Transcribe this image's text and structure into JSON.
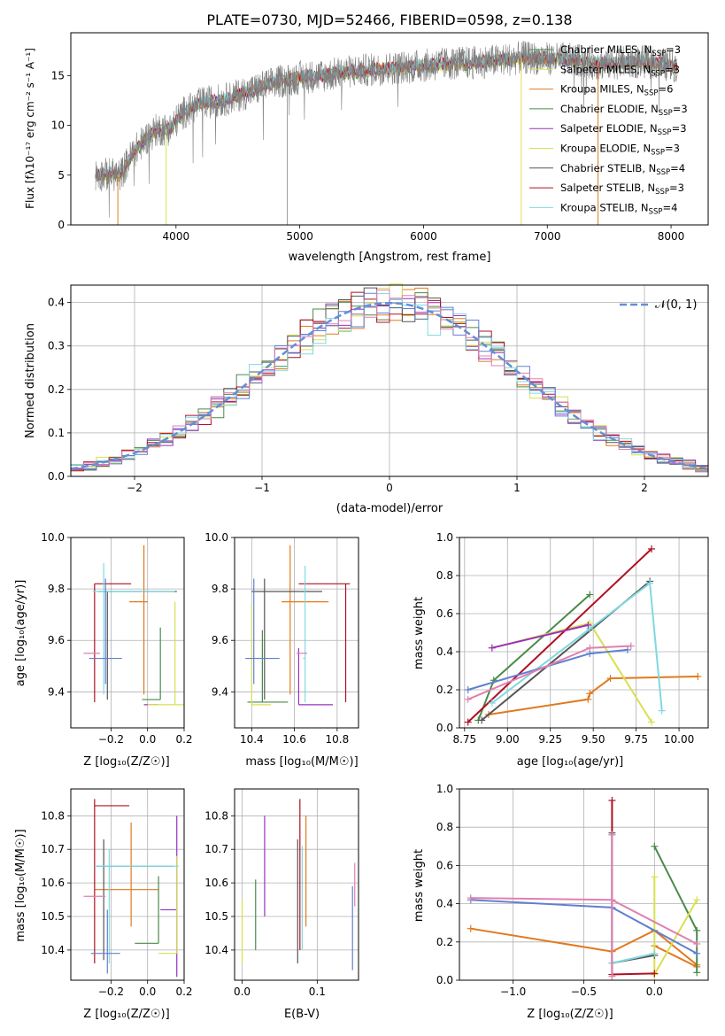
{
  "title": "PLATE=0730, MJD=52466, FIBERID=0598, z=0.138",
  "colors": {
    "series": [
      "#e07a1f",
      "#4a8a4a",
      "#9a2fbf",
      "#d8e050",
      "#555555",
      "#b01020",
      "#80d8e0"
    ],
    "teal": "#80d8e0",
    "mean_blue": "#6080d0",
    "pink": "#e080b0",
    "data_gray": "#808080",
    "gaussian": "#6090d8"
  },
  "chart_data": [
    {
      "id": "spectrum",
      "type": "line",
      "xlabel": "wavelength [Angstrom, rest frame]",
      "ylabel": "Flux [fλ10⁻¹⁷ erg cm⁻² s⁻¹ A⁻¹]",
      "xlim": [
        3150,
        8300
      ],
      "ylim": [
        0,
        19.3
      ],
      "xticks": [
        "4000",
        "5000",
        "6000",
        "7000",
        "8000"
      ],
      "yticks": [
        "0",
        "5",
        "10",
        "15"
      ],
      "legend_position": "upper-right",
      "legend": [
        "Chabrier MILES, N_SSP=3",
        "Salpeter MILES, N_SSP=3",
        "Kroupa MILES, N_SSP=6",
        "Chabrier ELODIE, N_SSP=3",
        "Salpeter ELODIE, N_SSP=3",
        "Kroupa ELODIE, N_SSP=3",
        "Chabrier STELIB, N_SSP=4",
        "Salpeter STELIB, N_SSP=3",
        "Kroupa STELIB, N_SSP=4"
      ],
      "continuum": {
        "wavelength": [
          3350,
          3450,
          3550,
          3650,
          3750,
          3850,
          3950,
          4050,
          4200,
          4400,
          4600,
          4800,
          5000,
          5200,
          5400,
          5600,
          5800,
          6000,
          6200,
          6400,
          6600,
          6800,
          7000,
          7200,
          7400,
          7600,
          7800,
          8000
        ],
        "flux": [
          5.0,
          5.1,
          5.0,
          7.2,
          8.6,
          9.6,
          9.6,
          11.2,
          12.2,
          12.6,
          13.4,
          14.3,
          14.8,
          15.0,
          15.4,
          15.6,
          15.8,
          16.0,
          16.2,
          16.3,
          16.5,
          16.8,
          16.7,
          16.6,
          16.2,
          16.3,
          16.4,
          16.0
        ]
      },
      "model_dropouts_wavelength": [
        3530,
        3920,
        6790,
        7410
      ]
    },
    {
      "id": "residuals",
      "type": "line",
      "xlabel": "(data-model)/error",
      "ylabel": "Normed distribution",
      "xlim": [
        -2.5,
        2.5
      ],
      "ylim": [
        0,
        0.44
      ],
      "xticks": [
        "−2",
        "−1",
        "0",
        "1",
        "2"
      ],
      "yticks": [
        "0.0",
        "0.1",
        "0.2",
        "0.3",
        "0.4"
      ],
      "legend": [
        "𝒩(0, 1)"
      ],
      "legend_position": "upper-right"
    },
    {
      "id": "age-vs-Z",
      "type": "scatter",
      "xlabel": "Z [log₁₀(Z/Z☉)]",
      "ylabel": "age  [log₁₀(age/yr)]",
      "xlim": [
        -0.42,
        0.2
      ],
      "ylim": [
        9.26,
        10.0
      ],
      "xticks": [
        "−0.2",
        "0.0",
        "0.2"
      ],
      "yticks": [
        "9.4",
        "9.6",
        "9.8",
        "10.0"
      ],
      "points": [
        {
          "x": -0.02,
          "y": 9.75,
          "xerr": [
            0.08,
            0.02
          ],
          "yerr": [
            0.36,
            0.22
          ],
          "color": 0
        },
        {
          "x": 0.07,
          "y": 9.37,
          "xerr": [
            0.1,
            0.0
          ],
          "yerr": [
            0.0,
            0.28
          ],
          "color": 1
        },
        {
          "x": 0.06,
          "y": 9.35,
          "xerr": [
            0.08,
            0.0
          ],
          "yerr": [
            0.0,
            0.0
          ],
          "color": 2
        },
        {
          "x": 0.15,
          "y": 9.35,
          "xerr": [
            0.15,
            0.05
          ],
          "yerr": [
            0.0,
            0.4
          ],
          "color": 3
        },
        {
          "x": -0.22,
          "y": 9.79,
          "xerr": [
            0.05,
            0.38
          ],
          "yerr": [
            0.42,
            0.0
          ],
          "color": 4
        },
        {
          "x": -0.29,
          "y": 9.82,
          "xerr": [
            0.0,
            0.2
          ],
          "yerr": [
            0.46,
            0.0
          ],
          "color": 5
        },
        {
          "x": -0.24,
          "y": 9.79,
          "xerr": [
            0.06,
            0.39
          ],
          "yerr": [
            0.4,
            0.11
          ],
          "color": 6
        },
        {
          "x": -0.23,
          "y": 9.53,
          "xerr": [
            0.09,
            0.09
          ],
          "yerr": [
            0.1,
            0.31
          ],
          "color": 7
        },
        {
          "x": -0.33,
          "y": 9.55,
          "xerr": [
            0.02,
            0.07
          ],
          "yerr": [
            0.0,
            0.0
          ],
          "color": 8
        }
      ]
    },
    {
      "id": "age-vs-mass",
      "type": "scatter",
      "xlabel": "mass [log₁₀(M/M☉)]",
      "ylabel": "",
      "xlim": [
        10.32,
        10.9
      ],
      "ylim": [
        9.26,
        10.0
      ],
      "xticks": [
        "10.4",
        "10.6",
        "10.8"
      ],
      "yticks": [
        "9.4",
        "9.6",
        "9.8",
        "10.0"
      ],
      "points": [
        {
          "x": 10.58,
          "y": 9.75,
          "xerr": [
            0.04,
            0.18
          ],
          "yerr": [
            0.36,
            0.22
          ],
          "color": 0
        },
        {
          "x": 10.45,
          "y": 9.36,
          "xerr": [
            0.07,
            0.12
          ],
          "yerr": [
            0.0,
            0.28
          ],
          "color": 1
        },
        {
          "x": 10.62,
          "y": 9.35,
          "xerr": [
            0.0,
            0.16
          ],
          "yerr": [
            0.0,
            0.22
          ],
          "color": 2
        },
        {
          "x": 10.4,
          "y": 9.35,
          "xerr": [
            0.0,
            0.09
          ],
          "yerr": [
            0.0,
            0.39
          ],
          "color": 3
        },
        {
          "x": 10.46,
          "y": 9.79,
          "xerr": [
            0.06,
            0.27
          ],
          "yerr": [
            0.42,
            0.05
          ],
          "color": 4
        },
        {
          "x": 10.84,
          "y": 9.82,
          "xerr": [
            0.22,
            0.02
          ],
          "yerr": [
            0.46,
            0.0
          ],
          "color": 5
        },
        {
          "x": 10.65,
          "y": 9.53,
          "xerr": [
            0.01,
            0.0
          ],
          "yerr": [
            0.17,
            0.36
          ],
          "color": 6
        },
        {
          "x": 10.41,
          "y": 9.53,
          "xerr": [
            0.04,
            0.12
          ],
          "yerr": [
            0.1,
            0.31
          ],
          "color": 7
        },
        {
          "x": 10.62,
          "y": 9.55,
          "xerr": [
            0.01,
            0.04
          ],
          "yerr": [
            0.0,
            0.0
          ],
          "color": 8
        }
      ]
    },
    {
      "id": "weight-vs-age",
      "type": "line",
      "xlabel": "age  [log₁₀(age/yr)]",
      "ylabel": "mass weight",
      "xlim": [
        8.72,
        10.17
      ],
      "ylim": [
        0,
        1.0
      ],
      "xticks": [
        "8.75",
        "9.00",
        "9.25",
        "9.50",
        "9.75",
        "10.00"
      ],
      "yticks": [
        "0.0",
        "0.2",
        "0.4",
        "0.6",
        "0.8",
        "1.0"
      ],
      "series": [
        {
          "color": 0,
          "x": [
            8.89,
            9.47,
            9.48,
            9.6,
            10.11
          ],
          "y": [
            0.07,
            0.15,
            0.18,
            0.26,
            0.27
          ]
        },
        {
          "color": 1,
          "x": [
            8.83,
            8.92,
            9.48
          ],
          "y": [
            0.04,
            0.25,
            0.7
          ]
        },
        {
          "color": 3,
          "x": [
            8.91,
            9.48,
            9.84
          ],
          "y": [
            0.42,
            0.55,
            0.03
          ]
        },
        {
          "color": 4,
          "x": [
            8.85,
            9.83
          ],
          "y": [
            0.04,
            0.77
          ]
        },
        {
          "color": 5,
          "x": [
            8.77,
            9.84
          ],
          "y": [
            0.03,
            0.94
          ]
        },
        {
          "color": 6,
          "x": [
            8.91,
            9.48,
            9.83,
            9.9
          ],
          "y": [
            0.13,
            0.52,
            0.76,
            0.09
          ]
        },
        {
          "color": 7,
          "x": [
            8.77,
            9.48,
            9.7
          ],
          "y": [
            0.2,
            0.39,
            0.41
          ]
        },
        {
          "color": 8,
          "x": [
            8.77,
            9.48,
            9.72
          ],
          "y": [
            0.15,
            0.42,
            0.43
          ]
        },
        {
          "color": 2,
          "x": [
            8.91,
            9.47
          ],
          "y": [
            0.42,
            0.54
          ]
        }
      ]
    },
    {
      "id": "mass-vs-Z",
      "type": "scatter",
      "xlabel": "Z [log₁₀(Z/Z☉)]",
      "ylabel": "mass [log₁₀(M/M☉)]",
      "xlim": [
        -0.42,
        0.2
      ],
      "ylim": [
        10.31,
        10.88
      ],
      "xticks": [
        "−0.2",
        "0.0",
        "0.2"
      ],
      "yticks": [
        "10.4",
        "10.5",
        "10.6",
        "10.7",
        "10.8"
      ],
      "points": [
        {
          "x": -0.09,
          "y": 10.58,
          "xerr": [
            0.2,
            0.15
          ],
          "yerr": [
            0.11,
            0.2
          ],
          "color": 0
        },
        {
          "x": 0.06,
          "y": 10.42,
          "xerr": [
            0.13,
            0.0
          ],
          "yerr": [
            0.0,
            0.2
          ],
          "color": 1
        },
        {
          "x": 0.16,
          "y": 10.52,
          "xerr": [
            0.09,
            0.0
          ],
          "yerr": [
            0.2,
            0.28
          ],
          "color": 2
        },
        {
          "x": 0.16,
          "y": 10.39,
          "xerr": [
            0.1,
            0.0
          ],
          "yerr": [
            0.0,
            0.29
          ],
          "color": 3
        },
        {
          "x": -0.24,
          "y": 10.65,
          "xerr": [
            0.04,
            0.38
          ],
          "yerr": [
            0.28,
            0.08
          ],
          "color": 4
        },
        {
          "x": -0.29,
          "y": 10.83,
          "xerr": [
            0.0,
            0.19
          ],
          "yerr": [
            0.47,
            0.02
          ],
          "color": 5
        },
        {
          "x": -0.21,
          "y": 10.65,
          "xerr": [
            0.08,
            0.38
          ],
          "yerr": [
            0.29,
            0.05
          ],
          "color": 6
        },
        {
          "x": -0.22,
          "y": 10.39,
          "xerr": [
            0.09,
            0.07
          ],
          "yerr": [
            0.06,
            0.13
          ],
          "color": 7
        },
        {
          "x": -0.3,
          "y": 10.56,
          "xerr": [
            0.05,
            0.07
          ],
          "yerr": [
            0.0,
            0.0
          ],
          "color": 8
        }
      ]
    },
    {
      "id": "mass-vs-EBV",
      "type": "scatter",
      "xlabel": "E(B-V)",
      "ylabel": "",
      "xlim": [
        -0.01,
        0.155
      ],
      "ylim": [
        10.31,
        10.88
      ],
      "xticks": [
        "0.0",
        "0.1"
      ],
      "yticks": [
        "10.4",
        "10.5",
        "10.6",
        "10.7",
        "10.8"
      ],
      "points": [
        {
          "x": 0.085,
          "y": 10.58,
          "yerr": [
            0.11,
            0.22
          ],
          "color": 0
        },
        {
          "x": 0.018,
          "y": 10.5,
          "yerr": [
            0.1,
            0.11
          ],
          "color": 1
        },
        {
          "x": 0.03,
          "y": 10.65,
          "yerr": [
            0.15,
            0.15
          ],
          "color": 2
        },
        {
          "x": 0.0,
          "y": 10.45,
          "yerr": [
            0.09,
            0.1
          ],
          "color": 3
        },
        {
          "x": 0.074,
          "y": 10.55,
          "yerr": [
            0.19,
            0.18
          ],
          "color": 4
        },
        {
          "x": 0.077,
          "y": 10.63,
          "yerr": [
            0.23,
            0.22
          ],
          "color": 5
        },
        {
          "x": 0.08,
          "y": 10.55,
          "yerr": [
            0.15,
            0.16
          ],
          "color": 6
        },
        {
          "x": 0.147,
          "y": 10.46,
          "yerr": [
            0.12,
            0.13
          ],
          "color": 7
        },
        {
          "x": 0.15,
          "y": 10.6,
          "yerr": [
            0.07,
            0.06
          ],
          "color": 8
        }
      ]
    },
    {
      "id": "weight-vs-Z",
      "type": "line",
      "xlabel": "Z [log₁₀(Z/Z☉)]",
      "ylabel": "mass weight",
      "xlim": [
        -1.38,
        0.38
      ],
      "ylim": [
        0,
        1.0
      ],
      "xticks": [
        "−1.0",
        "−0.5",
        "0.0"
      ],
      "yticks": [
        "0.0",
        "0.2",
        "0.4",
        "0.6",
        "0.8",
        "1.0"
      ],
      "series": [
        {
          "color": 0,
          "x": [
            -1.3,
            -0.3,
            0.0,
            0.3
          ],
          "y": [
            0.27,
            0.15,
            0.26,
            0.08
          ]
        },
        {
          "color": 0,
          "x": [
            0.0,
            0.3
          ],
          "y": [
            0.18,
            0.07
          ]
        },
        {
          "color": 1,
          "x": [
            0.0,
            0.3,
            0.3
          ],
          "y": [
            0.7,
            0.26,
            0.04
          ]
        },
        {
          "color": 3,
          "x": [
            0.0,
            0.0,
            0.3
          ],
          "y": [
            0.54,
            0.03,
            0.42
          ]
        },
        {
          "color": 4,
          "x": [
            -0.3,
            -0.3,
            0.0
          ],
          "y": [
            0.77,
            0.09,
            0.13
          ]
        },
        {
          "color": 5,
          "x": [
            -0.3,
            -0.3,
            0.0
          ],
          "y": [
            0.94,
            0.03,
            0.035
          ]
        },
        {
          "color": 6,
          "x": [
            -0.3,
            -0.3,
            0.0
          ],
          "y": [
            0.76,
            0.09,
            0.14
          ]
        },
        {
          "color": 7,
          "x": [
            -1.3,
            -0.3,
            0.3
          ],
          "y": [
            0.42,
            0.38,
            0.14
          ]
        },
        {
          "color": 8,
          "x": [
            -1.3,
            -0.3,
            0.3
          ],
          "y": [
            0.43,
            0.42,
            0.19
          ]
        },
        {
          "color": 8,
          "x": [
            -0.3,
            -0.3
          ],
          "y": [
            0.76,
            0.02
          ]
        }
      ]
    }
  ]
}
